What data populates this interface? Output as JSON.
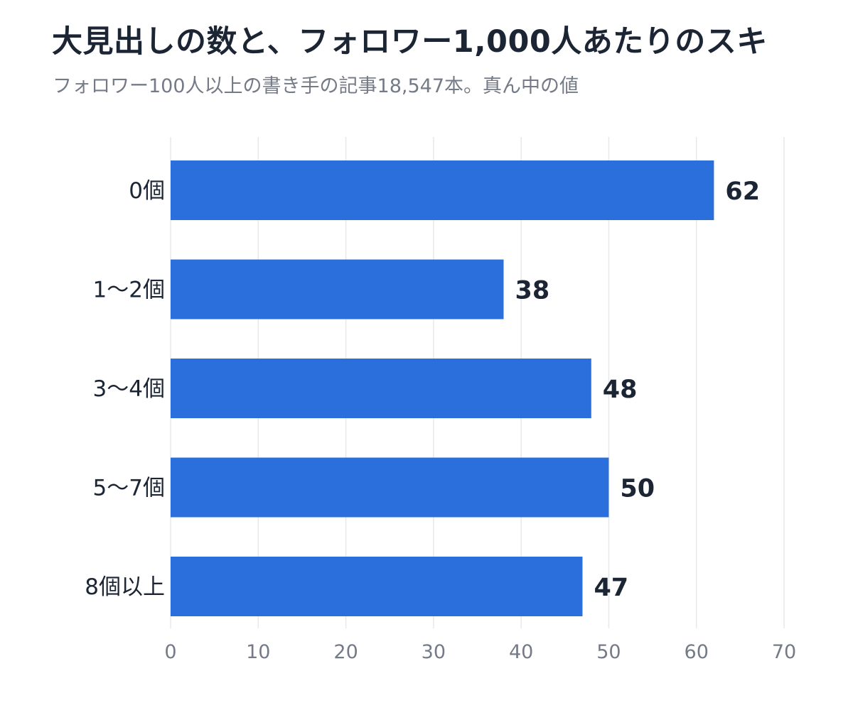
{
  "chart_data": {
    "type": "bar",
    "orientation": "horizontal",
    "title": "大見出しの数と、フォロワー1,000人あたりのスキ",
    "subtitle": "フォロワー100人以上の書き手の記事18,547本。真ん中の値",
    "categories": [
      "0個",
      "1〜2個",
      "3〜4個",
      "5〜7個",
      "8個以上"
    ],
    "values": [
      62,
      38,
      48,
      50,
      47
    ],
    "value_labels": [
      "62",
      "38",
      "48",
      "50",
      "47"
    ],
    "xlim": [
      0,
      70
    ],
    "xticks": [
      0,
      10,
      20,
      30,
      40,
      50,
      60,
      70
    ],
    "xtick_labels": [
      "0",
      "10",
      "20",
      "30",
      "40",
      "50",
      "60",
      "70"
    ],
    "grid": "vertical",
    "bar_color": "#2a6fdb",
    "grid_color": "#e6e8eb"
  }
}
